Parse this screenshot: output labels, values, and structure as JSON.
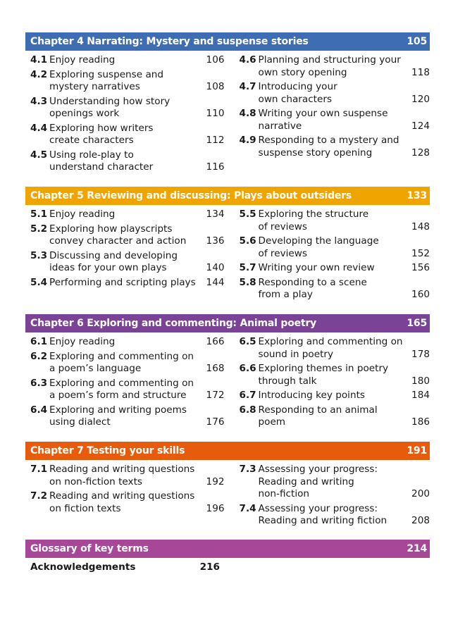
{
  "chapters": [
    {
      "title": "Chapter 4 Narrating: Mystery and suspense stories",
      "page": "105",
      "color": "#3f6db3",
      "left": [
        {
          "num": "4.1",
          "lines": [
            "Enjoy reading"
          ],
          "page": "106"
        },
        {
          "num": "4.2",
          "lines": [
            "Exploring suspense and",
            "mystery narratives"
          ],
          "page": "108"
        },
        {
          "num": "4.3",
          "lines": [
            "Understanding how story",
            "openings work"
          ],
          "page": "110"
        },
        {
          "num": "4.4",
          "lines": [
            "Exploring how writers",
            "create characters"
          ],
          "page": "112"
        },
        {
          "num": "4.5",
          "lines": [
            "Using role-play to",
            "understand character"
          ],
          "page": "116"
        }
      ],
      "right": [
        {
          "num": "4.6",
          "lines": [
            "Planning and structuring your",
            "own story opening"
          ],
          "page": "118"
        },
        {
          "num": "4.7",
          "lines": [
            "Introducing your",
            "own characters"
          ],
          "page": "120"
        },
        {
          "num": "4.8",
          "lines": [
            "Writing your own suspense",
            "narrative"
          ],
          "page": "124"
        },
        {
          "num": "4.9",
          "lines": [
            "Responding to a mystery and",
            "suspense story opening"
          ],
          "page": "128"
        }
      ]
    },
    {
      "title": "Chapter 5 Reviewing and discussing: Plays about outsiders",
      "page": "133",
      "color": "#f0a400",
      "left": [
        {
          "num": "5.1",
          "lines": [
            "Enjoy reading"
          ],
          "page": "134"
        },
        {
          "num": "5.2",
          "lines": [
            "Exploring how playscripts",
            "convey character and action"
          ],
          "page": "136"
        },
        {
          "num": "5.3",
          "lines": [
            "Discussing and developing",
            "ideas for your own plays"
          ],
          "page": "140"
        },
        {
          "num": "5.4",
          "lines": [
            "Performing and scripting plays"
          ],
          "page": "144"
        }
      ],
      "right": [
        {
          "num": "5.5",
          "lines": [
            "Exploring the structure",
            "of reviews"
          ],
          "page": "148"
        },
        {
          "num": "5.6",
          "lines": [
            "Developing the language",
            "of reviews"
          ],
          "page": "152"
        },
        {
          "num": "5.7",
          "lines": [
            "Writing your own review"
          ],
          "page": "156"
        },
        {
          "num": "5.8",
          "lines": [
            "Responding to a scene",
            "from a play"
          ],
          "page": "160"
        }
      ]
    },
    {
      "title": "Chapter 6 Exploring and commenting: Animal poetry",
      "page": "165",
      "color": "#7a4396",
      "left": [
        {
          "num": "6.1",
          "lines": [
            "Enjoy reading"
          ],
          "page": "166"
        },
        {
          "num": "6.2",
          "lines": [
            "Exploring and commenting on",
            "a poem’s language"
          ],
          "page": "168"
        },
        {
          "num": "6.3",
          "lines": [
            "Exploring and commenting on",
            "a poem’s form and structure"
          ],
          "page": "172"
        },
        {
          "num": "6.4",
          "lines": [
            "Exploring and writing poems",
            "using dialect"
          ],
          "page": "176"
        }
      ],
      "right": [
        {
          "num": "6.5",
          "lines": [
            "Exploring and commenting on",
            "sound in poetry"
          ],
          "page": "178"
        },
        {
          "num": "6.6",
          "lines": [
            "Exploring themes in poetry",
            "through talk"
          ],
          "page": "180"
        },
        {
          "num": "6.7",
          "lines": [
            "Introducing key points"
          ],
          "page": "184"
        },
        {
          "num": "6.8",
          "lines": [
            "Responding to an animal poem"
          ],
          "page": "186"
        }
      ]
    },
    {
      "title": "Chapter 7 Testing your skills",
      "page": "191",
      "color": "#e75c0c",
      "left": [
        {
          "num": "7.1",
          "lines": [
            "Reading and writing questions",
            "on non-fiction texts"
          ],
          "page": "192"
        },
        {
          "num": "7.2",
          "lines": [
            "Reading and writing questions",
            "on fiction texts"
          ],
          "page": "196"
        }
      ],
      "right": [
        {
          "num": "7.3",
          "lines": [
            "Assessing your progress:",
            "Reading and writing",
            "non-fiction"
          ],
          "page": "200"
        },
        {
          "num": "7.4",
          "lines": [
            "Assessing your progress:",
            "Reading and writing fiction"
          ],
          "page": "208"
        }
      ]
    },
    {
      "title": "Glossary of key terms",
      "page": "214",
      "color": "#a64797",
      "left": [],
      "right": []
    }
  ],
  "acknowledgements": {
    "label": "Acknowledgements",
    "page": "216"
  }
}
